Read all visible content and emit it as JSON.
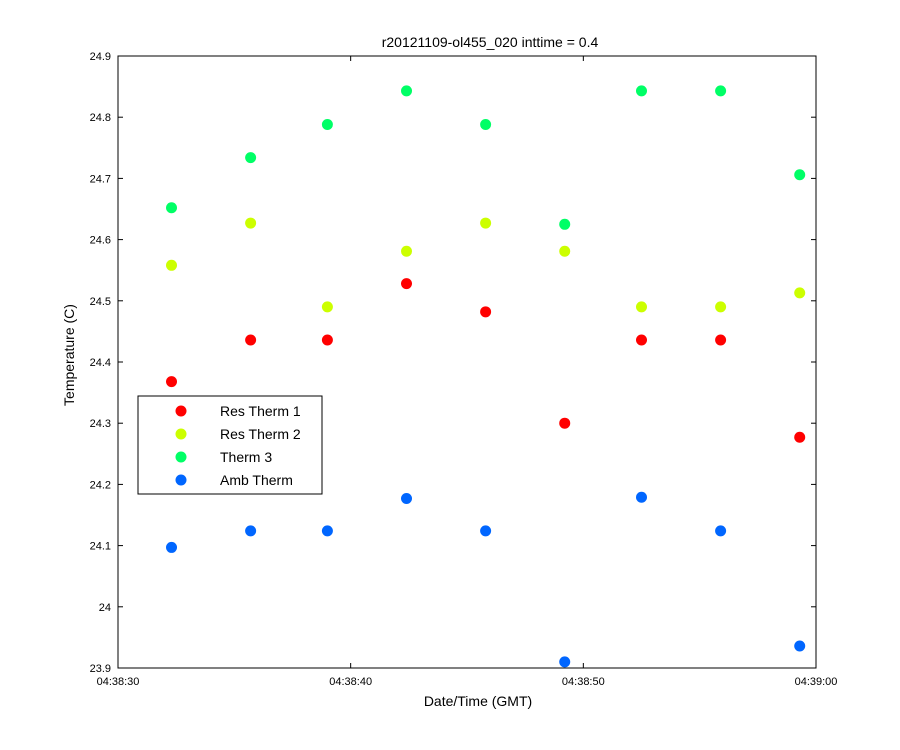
{
  "chart_data": {
    "type": "scatter",
    "title": "r20121109-ol455_020 inttime = 0.4",
    "xlabel": "Date/Time (GMT)",
    "ylabel": "Temperature (C)",
    "xlim": [
      "04:38:30",
      "04:39:00"
    ],
    "ylim": [
      23.9,
      24.9
    ],
    "x_ticks": [
      "04:38:30",
      "04:38:40",
      "04:38:50",
      "04:39:00"
    ],
    "y_ticks": [
      "23.9",
      "24",
      "24.1",
      "24.2",
      "24.3",
      "24.4",
      "24.5",
      "24.6",
      "24.7",
      "24.8",
      "24.9"
    ],
    "grid": false,
    "legend_position": "center-left",
    "x": [
      "04:38:32.3",
      "04:38:35.7",
      "04:38:39.0",
      "04:38:42.4",
      "04:38:45.8",
      "04:38:49.2",
      "04:38:52.5",
      "04:38:55.9",
      "04:38:59.3"
    ],
    "series": [
      {
        "name": "Res Therm 1",
        "color": "#ff0000",
        "values": [
          24.368,
          24.436,
          24.436,
          24.528,
          24.482,
          24.3,
          24.436,
          24.436,
          24.277
        ]
      },
      {
        "name": "Res Therm 2",
        "color": "#ccff00",
        "values": [
          24.558,
          24.627,
          24.49,
          24.581,
          24.627,
          24.581,
          24.49,
          24.49,
          24.513
        ]
      },
      {
        "name": "Therm 3",
        "color": "#00ff66",
        "values": [
          24.652,
          24.734,
          24.788,
          24.843,
          24.788,
          24.625,
          24.843,
          24.843,
          24.706
        ]
      },
      {
        "name": "Amb Therm",
        "color": "#0066ff",
        "values": [
          24.097,
          24.124,
          24.124,
          24.177,
          24.124,
          23.91,
          24.179,
          24.124,
          23.936
        ]
      }
    ]
  }
}
